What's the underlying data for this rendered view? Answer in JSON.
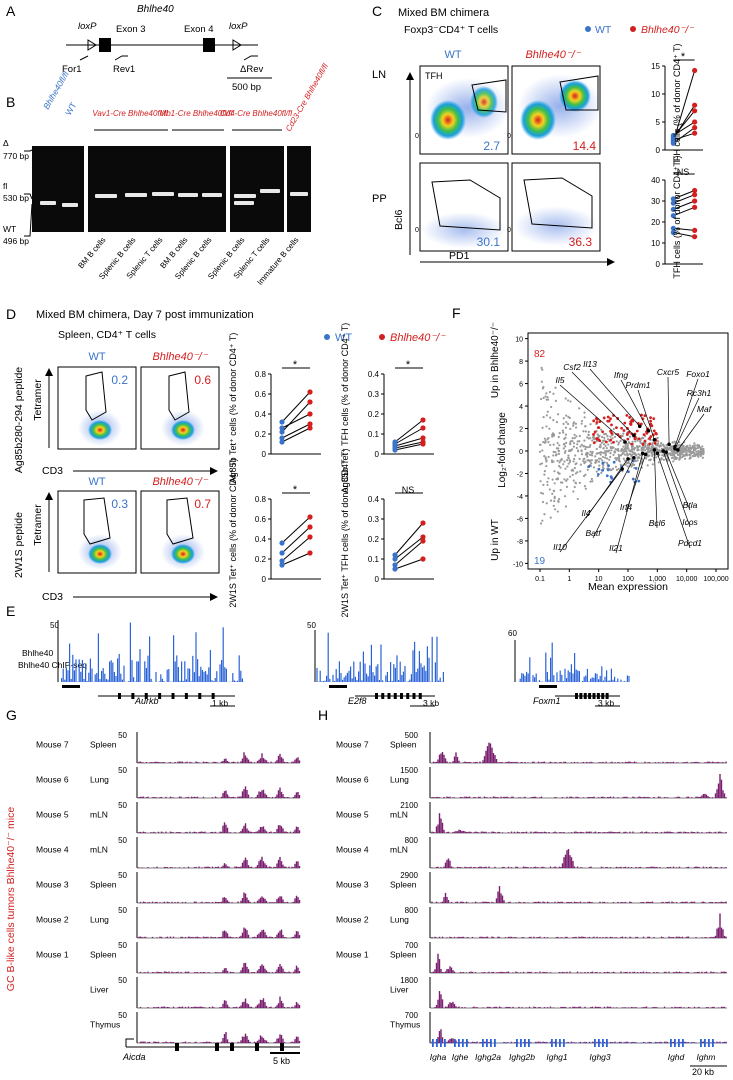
{
  "colors": {
    "wt": "#3a74c9",
    "ko": "#d41f1f",
    "track": "#7a1f6e",
    "bar": "#2a63d6",
    "grey": "#9a9a9a"
  },
  "panels": {
    "A": "A",
    "B": "B",
    "C": "C",
    "D": "D",
    "E": "E",
    "F": "F",
    "G": "G",
    "H": "H"
  },
  "panel_a": {
    "gene": "Bhlhe40",
    "loxp": "loxP",
    "exon3": "Exon 3",
    "exon4": "Exon 4",
    "for1": "For1",
    "rev1": "Rev1",
    "drev": "ΔRev",
    "scale": "500 bp"
  },
  "panel_b": {
    "size_delta": "Δ",
    "size_770": "770 bp",
    "size_fl": "fl",
    "size_530": "530 bp",
    "size_wt": "WT",
    "size_496": "496 bp",
    "ctrl_flfl": "Bhlhe40fl/fl",
    "ctrl_wt": "WT",
    "groups": [
      "Vav1-Cre Bhlhe40fl/fl",
      "Mb1-Cre Bhlhe40fl/fl",
      "Cd4-Cre Bhlhe40fl/fl",
      "Cd23-Cre Bhlhe40fl/fl"
    ],
    "lanes": [
      "BM B cells",
      "Splenic B cells",
      "Splenic T cells",
      "BM B cells",
      "Splenic B cells",
      "Splenic B cells",
      "Splenic T cells",
      "Immature B cells"
    ]
  },
  "panel_c": {
    "title": "Mixed BM chimera",
    "subtitle": "Foxp3⁻CD4⁺ T cells",
    "legend_wt": "WT",
    "legend_ko": "Bhlhe40⁻/⁻",
    "col_wt": "WT",
    "col_ko": "Bhlhe40⁻/⁻",
    "row_ln": "LN",
    "row_pp": "PP",
    "tfh": "TFH",
    "zero": "0",
    "xaxis": "PD1",
    "yaxis": "Bcl6",
    "pct_ln_wt": "2.7",
    "pct_ln_ko": "14.4",
    "pct_pp_wt": "30.1",
    "pct_pp_ko": "36.3",
    "sig_ln": "*",
    "sig_pp": "NS",
    "ylabel": "TFH cells (% of donor CD4⁺ T)",
    "ln_ticks": [
      "0",
      "5",
      "10",
      "15"
    ],
    "pp_ticks": [
      "0",
      "10",
      "20",
      "30",
      "40"
    ]
  },
  "panel_d": {
    "title": "Mixed BM chimera, Day 7 post immunization",
    "subtitle": "Spleen, CD4⁺ T cells",
    "legend_wt": "WT",
    "legend_ko": "Bhlhe40⁻/⁻",
    "col_wt": "WT",
    "col_ko": "Bhlhe40⁻/⁻",
    "row1": "Ag85b280-294 peptide",
    "row2": "2W1S peptide",
    "tetramer": "Tetramer",
    "cd3": "CD3",
    "pct1_wt": "0.2",
    "pct1_ko": "0.6",
    "pct2_wt": "0.3",
    "pct2_ko": "0.7",
    "y1": "Ag85b Tet⁺ cells (% of donor CD4⁺ T)",
    "y2": "Ag85b Tet⁺ TFH cells (% of donor CD4⁺ T)",
    "y3": "2W1S Tet⁺ cells (% of donor CD4⁺ T)",
    "y4": "2W1S Tet⁺ TFH cells (% of donor CD4⁺ T)",
    "sig1": "*",
    "sig2": "*",
    "sig3": "*",
    "sig4": "NS",
    "ticks_a": [
      "0",
      "0.2",
      "0.4",
      "0.6",
      "0.8"
    ],
    "ticks_b": [
      "0",
      "0.1",
      "0.2",
      "0.3",
      "0.4"
    ],
    "ticks_c": [
      "0",
      "0.2",
      "0.4",
      "0.6",
      "0.8"
    ],
    "ticks_d": [
      "0",
      "0.1",
      "0.2",
      "0.3",
      "0.4"
    ]
  },
  "panel_e": {
    "label": "Bhlhe40 ChIP-seq",
    "scale1": "50",
    "scale2": "50",
    "scale3": "60",
    "gene1": "Aurkb",
    "gene2": "E2f8",
    "gene3": "Foxm1",
    "sb1": "1 kb",
    "sb2": "3 kb",
    "sb3": "3 kb"
  },
  "panel_f": {
    "up_ko": "82",
    "up_wt": "19",
    "ylabel_a": "Log₂-fold change",
    "ylabel_b": "Up in WT",
    "ylabel_c": "Up in Bhlhe40⁻/⁻",
    "xlabel": "Mean expression",
    "yticks": [
      "10",
      "8",
      "6",
      "4",
      "2",
      "0",
      "-2",
      "-4",
      "-6",
      "-8",
      "-10"
    ],
    "xticks": [
      "0.1",
      "1",
      "10",
      "100",
      "1,000",
      "10,000",
      "100,000"
    ],
    "genes": [
      "Il5",
      "Csf2",
      "Il13",
      "Ifng",
      "Prdm1",
      "Cxcr5",
      "Foxo1",
      "Rc3h1",
      "Maf",
      "Btla",
      "Icos",
      "Pdcd1",
      "Bcl6",
      "Irf4",
      "Il21",
      "Batf",
      "Il4",
      "Il10"
    ]
  },
  "panel_g": {
    "side": "GC B-like cells tumors Bhlhe40⁻/⁻ mice",
    "gene": "Aicda",
    "scalebar": "5 kb",
    "tracks": [
      {
        "mouse": "Mouse 7",
        "tissue": "Spleen",
        "scale": "50"
      },
      {
        "mouse": "Mouse 6",
        "tissue": "Lung",
        "scale": "50"
      },
      {
        "mouse": "Mouse 5",
        "tissue": "mLN",
        "scale": "50"
      },
      {
        "mouse": "Mouse 4",
        "tissue": "mLN",
        "scale": "50"
      },
      {
        "mouse": "Mouse 3",
        "tissue": "Spleen",
        "scale": "50"
      },
      {
        "mouse": "Mouse 2",
        "tissue": "Lung",
        "scale": "50"
      },
      {
        "mouse": "Mouse 1",
        "tissue": "Spleen",
        "scale": "50"
      },
      {
        "mouse": "",
        "tissue": "Liver",
        "scale": "50"
      },
      {
        "mouse": "",
        "tissue": "Thymus",
        "scale": "50"
      }
    ]
  },
  "panel_h": {
    "genes": [
      "Igha",
      "Ighe",
      "Ighg2a",
      "Ighg2b",
      "Ighg1",
      "Ighg3",
      "Ighd",
      "Ighm"
    ],
    "scalebar": "20 kb",
    "tracks": [
      {
        "mouse": "Mouse 7",
        "tissue": "Spleen",
        "scale": "500"
      },
      {
        "mouse": "Mouse 6",
        "tissue": "Lung",
        "scale": "1500"
      },
      {
        "mouse": "Mouse 5",
        "tissue": "mLN",
        "scale": "2100"
      },
      {
        "mouse": "Mouse 4",
        "tissue": "mLN",
        "scale": "800"
      },
      {
        "mouse": "Mouse 3",
        "tissue": "Spleen",
        "scale": "2900"
      },
      {
        "mouse": "Mouse 2",
        "tissue": "Lung",
        "scale": "800"
      },
      {
        "mouse": "Mouse 1",
        "tissue": "Spleen",
        "scale": "700"
      },
      {
        "mouse": "",
        "tissue": "Liver",
        "scale": "1800"
      },
      {
        "mouse": "",
        "tissue": "Thymus",
        "scale": "700"
      }
    ]
  },
  "chart_data": [
    {
      "type": "line",
      "title": "LN TFH cells",
      "ylabel": "TFH cells (% of donor CD4+ T)",
      "ylim": [
        0,
        15
      ],
      "categories": [
        "WT",
        "Bhlhe40-/-"
      ],
      "series": [
        {
          "name": "m1",
          "values": [
            1.5,
            14.2
          ]
        },
        {
          "name": "m2",
          "values": [
            2.0,
            8.0
          ]
        },
        {
          "name": "m3",
          "values": [
            2.3,
            7.0
          ]
        },
        {
          "name": "m4",
          "values": [
            2.6,
            5.0
          ]
        },
        {
          "name": "m5",
          "values": [
            1.2,
            4.0
          ]
        },
        {
          "name": "m6",
          "values": [
            1.8,
            3.0
          ]
        }
      ]
    },
    {
      "type": "line",
      "title": "PP TFH cells",
      "ylabel": "TFH cells (% of donor CD4+ T)",
      "ylim": [
        0,
        40
      ],
      "categories": [
        "WT",
        "Bhlhe40-/-"
      ],
      "series": [
        {
          "name": "m1",
          "values": [
            31,
            35
          ]
        },
        {
          "name": "m2",
          "values": [
            29,
            33
          ]
        },
        {
          "name": "m3",
          "values": [
            26,
            30
          ]
        },
        {
          "name": "m4",
          "values": [
            23,
            27
          ]
        },
        {
          "name": "m5",
          "values": [
            17,
            16
          ]
        },
        {
          "name": "m6",
          "values": [
            15,
            13
          ]
        }
      ]
    },
    {
      "type": "line",
      "title": "Ag85b Tet+ cells",
      "ylim": [
        0,
        0.8
      ],
      "categories": [
        "WT",
        "Bhlhe40-/-"
      ],
      "series": [
        {
          "name": "m1",
          "values": [
            0.32,
            0.62
          ]
        },
        {
          "name": "m2",
          "values": [
            0.22,
            0.52
          ]
        },
        {
          "name": "m3",
          "values": [
            0.26,
            0.4
          ]
        },
        {
          "name": "m4",
          "values": [
            0.16,
            0.3
          ]
        },
        {
          "name": "m5",
          "values": [
            0.12,
            0.26
          ]
        }
      ]
    },
    {
      "type": "line",
      "title": "Ag85b Tet+ TFH cells",
      "ylim": [
        0,
        0.4
      ],
      "categories": [
        "WT",
        "Bhlhe40-/-"
      ],
      "series": [
        {
          "name": "m1",
          "values": [
            0.06,
            0.17
          ]
        },
        {
          "name": "m2",
          "values": [
            0.05,
            0.13
          ]
        },
        {
          "name": "m3",
          "values": [
            0.04,
            0.08
          ]
        },
        {
          "name": "m4",
          "values": [
            0.03,
            0.06
          ]
        },
        {
          "name": "m5",
          "values": [
            0.02,
            0.05
          ]
        }
      ]
    },
    {
      "type": "line",
      "title": "2W1S Tet+ cells",
      "ylim": [
        0,
        0.8
      ],
      "categories": [
        "WT",
        "Bhlhe40-/-"
      ],
      "series": [
        {
          "name": "m1",
          "values": [
            0.36,
            0.62
          ]
        },
        {
          "name": "m2",
          "values": [
            0.26,
            0.52
          ]
        },
        {
          "name": "m3",
          "values": [
            0.18,
            0.42
          ]
        },
        {
          "name": "m4",
          "values": [
            0.14,
            0.26
          ]
        }
      ]
    },
    {
      "type": "line",
      "title": "2W1S Tet+ TFH cells",
      "ylim": [
        0,
        0.4
      ],
      "categories": [
        "WT",
        "Bhlhe40-/-"
      ],
      "series": [
        {
          "name": "m1",
          "values": [
            0.12,
            0.28
          ]
        },
        {
          "name": "m2",
          "values": [
            0.1,
            0.21
          ]
        },
        {
          "name": "m3",
          "values": [
            0.07,
            0.19
          ]
        },
        {
          "name": "m4",
          "values": [
            0.05,
            0.1
          ]
        }
      ]
    }
  ]
}
